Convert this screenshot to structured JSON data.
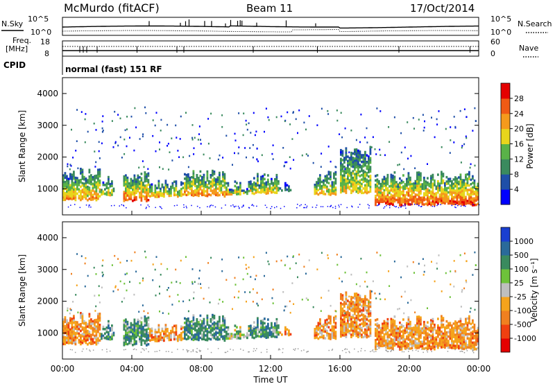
{
  "header": {
    "station": "McMurdo (fitACF)",
    "beam": "Beam 11",
    "date": "17/Oct/2014"
  },
  "strip_panels": {
    "nsky_label": "N.Sky",
    "nsearch_label": "N.Search",
    "noise_ticks_left": [
      "10^5",
      "10^0"
    ],
    "noise_ticks_right": [
      "10^5",
      "10^0"
    ],
    "freq_label_line1": "Freq.",
    "freq_label_line2": "[MHz]",
    "freq_ticks_left": [
      "18",
      "8"
    ],
    "nave_ticks_right": [
      "60",
      "0"
    ],
    "nave_label": "Nave",
    "cpid_label": "CPID",
    "cpid_text": "normal (fast) 151 RF"
  },
  "chart_data": [
    {
      "type": "heatmap",
      "name": "power",
      "ylabel": "Slant Range [km]",
      "yticks": [
        "1000",
        "2000",
        "3000",
        "4000"
      ],
      "ylim": [
        180,
        4500
      ],
      "xticks": [
        "00:00",
        "04:00",
        "08:00",
        "12:00",
        "16:00",
        "20:00",
        "00:00"
      ],
      "xlim_hours": [
        0,
        24
      ],
      "colorbar": {
        "label": "Power [dB]",
        "ticks": [
          "4",
          "8",
          "12",
          "16",
          "20",
          "24",
          "28"
        ],
        "range": [
          0,
          32
        ],
        "colors": [
          "#0000ff",
          "#1f4fa8",
          "#3a8a5e",
          "#59b248",
          "#e8d51c",
          "#f59a1c",
          "#f05a14",
          "#e40000"
        ]
      },
      "echo_segments": [
        {
          "t": [
            0.0,
            2.2
          ],
          "r": [
            680,
            1620
          ],
          "p": 17
        },
        {
          "t": [
            2.2,
            3.0
          ],
          "r": [
            820,
            1350
          ],
          "p": 13
        },
        {
          "t": [
            3.5,
            5.0
          ],
          "r": [
            650,
            1500
          ],
          "p": 19
        },
        {
          "t": [
            5.0,
            7.0
          ],
          "r": [
            780,
            1250
          ],
          "p": 16
        },
        {
          "t": [
            7.0,
            9.5
          ],
          "r": [
            800,
            1600
          ],
          "p": 18
        },
        {
          "t": [
            9.5,
            10.8
          ],
          "r": [
            860,
            1250
          ],
          "p": 14
        },
        {
          "t": [
            10.8,
            12.5
          ],
          "r": [
            880,
            1450
          ],
          "p": 15
        },
        {
          "t": [
            12.5,
            13.2
          ],
          "r": [
            950,
            1150
          ],
          "p": 9
        },
        {
          "t": [
            14.5,
            15.8
          ],
          "r": [
            850,
            1550
          ],
          "p": 15
        },
        {
          "t": [
            16.0,
            17.8
          ],
          "r": [
            900,
            2300
          ],
          "p": 14
        },
        {
          "t": [
            18.0,
            24.0
          ],
          "r": [
            520,
            1500
          ],
          "p": 21
        }
      ]
    },
    {
      "type": "heatmap",
      "name": "velocity",
      "xlabel": "Time UT",
      "ylabel": "Slant Range [km]",
      "yticks": [
        "1000",
        "2000",
        "3000",
        "4000"
      ],
      "ylim": [
        180,
        4500
      ],
      "xticks": [
        "00:00",
        "04:00",
        "08:00",
        "12:00",
        "16:00",
        "20:00",
        "00:00"
      ],
      "xlim_hours": [
        0,
        24
      ],
      "colorbar": {
        "label": "Velocity [m s⁻¹]",
        "ticks": [
          "1000",
          "500",
          "100",
          "25",
          "-25",
          "-100",
          "-500",
          "-1000"
        ],
        "colors": [
          "#1a3fd0",
          "#2a6a9a",
          "#3a8a5e",
          "#6ec23a",
          "#bfbfbf",
          "#f5a31c",
          "#f08020",
          "#f04010",
          "#e40000"
        ]
      },
      "echo_segments": [
        {
          "t": [
            0.0,
            2.2
          ],
          "r": [
            680,
            1620
          ],
          "v": "orange"
        },
        {
          "t": [
            2.2,
            3.0
          ],
          "r": [
            820,
            1350
          ],
          "v": "green"
        },
        {
          "t": [
            3.5,
            5.0
          ],
          "r": [
            650,
            1500
          ],
          "v": "green"
        },
        {
          "t": [
            5.0,
            7.0
          ],
          "r": [
            780,
            1250
          ],
          "v": "orange"
        },
        {
          "t": [
            7.0,
            9.5
          ],
          "r": [
            800,
            1600
          ],
          "v": "green"
        },
        {
          "t": [
            9.5,
            10.8
          ],
          "r": [
            860,
            1250
          ],
          "v": "gray"
        },
        {
          "t": [
            10.8,
            12.5
          ],
          "r": [
            880,
            1450
          ],
          "v": "green"
        },
        {
          "t": [
            12.5,
            13.2
          ],
          "r": [
            950,
            1150
          ],
          "v": "orange"
        },
        {
          "t": [
            14.5,
            15.8
          ],
          "r": [
            850,
            1550
          ],
          "v": "orange"
        },
        {
          "t": [
            16.0,
            17.8
          ],
          "r": [
            900,
            2300
          ],
          "v": "orange"
        },
        {
          "t": [
            18.0,
            24.0
          ],
          "r": [
            520,
            1500
          ],
          "v": "orange"
        }
      ]
    }
  ]
}
